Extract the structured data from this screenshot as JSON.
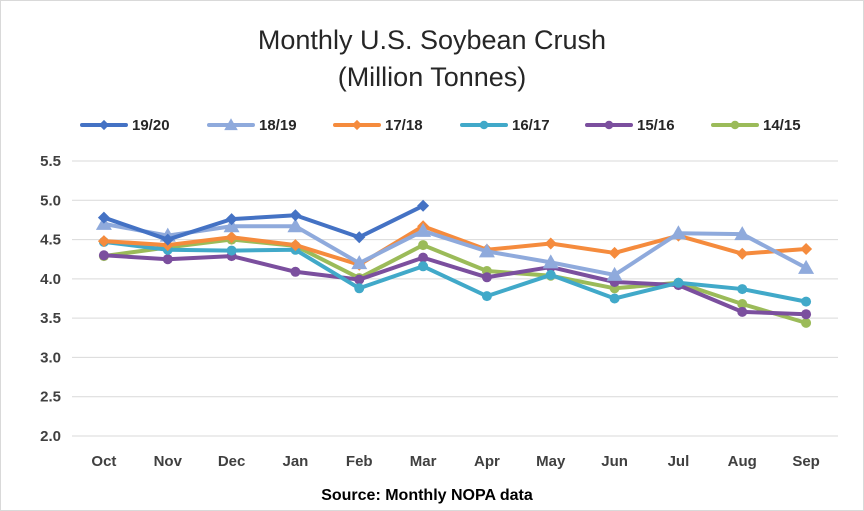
{
  "chart_data": {
    "type": "line",
    "title_lines": [
      "Monthly U.S. Soybean Crush",
      "(Million Tonnes)"
    ],
    "source_note": "Source: Monthly NOPA data",
    "categories": [
      "Oct",
      "Nov",
      "Dec",
      "Jan",
      "Feb",
      "Mar",
      "Apr",
      "May",
      "Jun",
      "Jul",
      "Aug",
      "Sep"
    ],
    "ylim": [
      2.0,
      5.5
    ],
    "yticks": [
      "2.0",
      "2.5",
      "3.0",
      "3.5",
      "4.0",
      "4.5",
      "5.0",
      "5.5"
    ],
    "grid": true,
    "legend_position": "top",
    "series": [
      {
        "name": "19/20",
        "color": "#4472c4",
        "marker": "diamond",
        "values": [
          4.78,
          4.5,
          4.76,
          4.81,
          4.53,
          4.93,
          null,
          null,
          null,
          null,
          null,
          null
        ]
      },
      {
        "name": "18/19",
        "color": "#8faadc",
        "marker": "triangle",
        "values": [
          4.7,
          4.55,
          4.67,
          4.67,
          4.2,
          4.61,
          4.35,
          4.21,
          4.05,
          4.58,
          4.57,
          4.14
        ]
      },
      {
        "name": "17/18",
        "color": "#f58b3d",
        "marker": "diamond",
        "values": [
          4.48,
          4.43,
          4.53,
          4.43,
          4.18,
          4.67,
          4.37,
          4.45,
          4.33,
          4.55,
          4.32,
          4.38
        ]
      },
      {
        "name": "16/17",
        "color": "#41a9c9",
        "marker": "circle",
        "values": [
          4.47,
          4.37,
          4.36,
          4.37,
          3.88,
          4.16,
          3.78,
          4.05,
          3.75,
          3.95,
          3.87,
          3.71
        ]
      },
      {
        "name": "15/16",
        "color": "#7b4f9e",
        "marker": "circle",
        "values": [
          4.3,
          4.25,
          4.29,
          4.09,
          3.99,
          4.27,
          4.02,
          4.15,
          3.96,
          3.92,
          3.58,
          3.55
        ]
      },
      {
        "name": "14/15",
        "color": "#9bbb59",
        "marker": "circle",
        "values": [
          4.29,
          4.4,
          4.5,
          4.42,
          4.01,
          4.43,
          4.1,
          4.04,
          3.88,
          3.95,
          3.68,
          3.44
        ]
      }
    ]
  }
}
